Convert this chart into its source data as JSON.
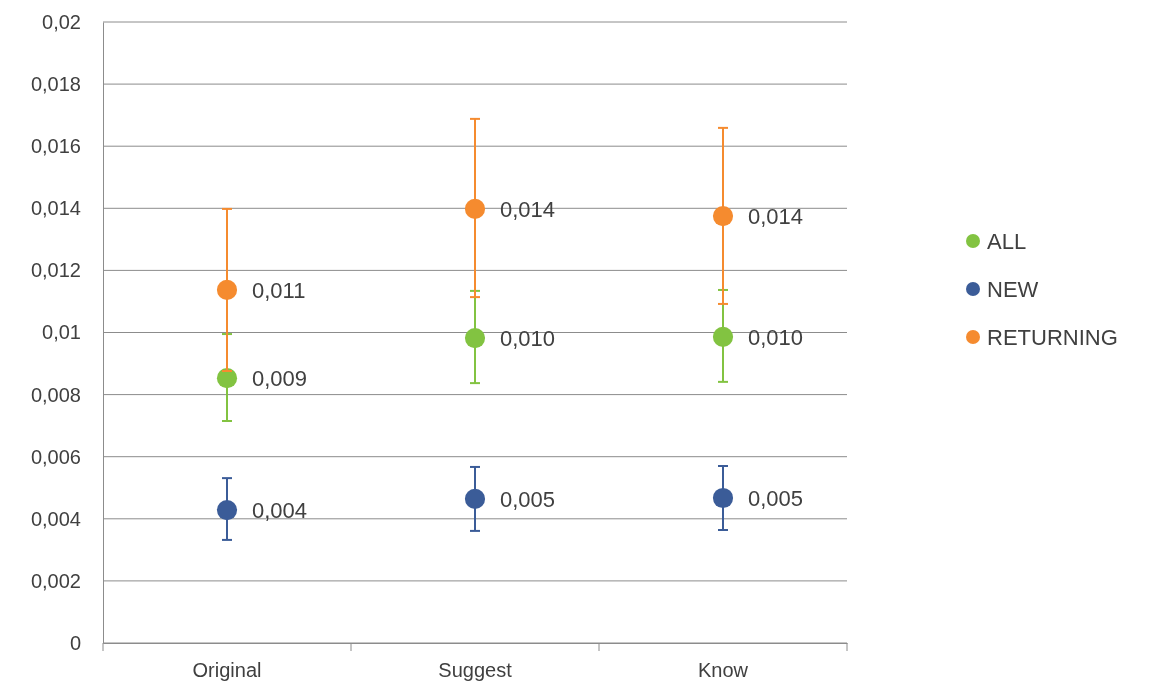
{
  "chart_data": {
    "type": "scatter",
    "categories": [
      "Original",
      "Suggest",
      "Know"
    ],
    "ylim": [
      0,
      0.02
    ],
    "yticks": [
      0,
      {
        "value": 0.002,
        "label": "0,002"
      },
      {
        "value": 0.004,
        "label": "0,004"
      },
      {
        "value": 0.006,
        "label": "0,006"
      },
      {
        "value": 0.008,
        "label": "0,008"
      },
      {
        "value": 0.01,
        "label": "0,01"
      },
      {
        "value": 0.012,
        "label": "0,012"
      },
      {
        "value": 0.014,
        "label": "0,014"
      },
      {
        "value": 0.016,
        "label": "0,016"
      },
      {
        "value": 0.018,
        "label": "0,018"
      },
      {
        "value": 0.02,
        "label": "0,02"
      }
    ],
    "grid": "y",
    "legend": "right",
    "marker": "circle",
    "series": [
      {
        "name": "ALL",
        "color": "#82c341",
        "values": [
          0.00853,
          0.00982,
          0.00986
        ],
        "errors": [
          [
            0.00715,
            0.00995
          ],
          [
            0.00837,
            0.01134
          ],
          [
            0.00841,
            0.01137
          ]
        ],
        "value_labels": [
          "0,009",
          "0,010",
          "0,010"
        ]
      },
      {
        "name": "NEW",
        "color": "#3b5c98",
        "values": [
          0.00428,
          0.00464,
          0.00467
        ],
        "errors": [
          [
            0.00332,
            0.00531
          ],
          [
            0.00361,
            0.00567
          ],
          [
            0.00364,
            0.0057
          ]
        ],
        "value_labels": [
          "0,004",
          "0,005",
          "0,005"
        ]
      },
      {
        "name": "RETURNING",
        "color": "#f58b2f",
        "values": [
          0.01137,
          0.01398,
          0.01375
        ],
        "errors": [
          [
            0.00876,
            0.01398
          ],
          [
            0.01114,
            0.01688
          ],
          [
            0.01092,
            0.01659
          ]
        ],
        "value_labels": [
          "0,011",
          "0,014",
          "0,014"
        ]
      }
    ]
  }
}
